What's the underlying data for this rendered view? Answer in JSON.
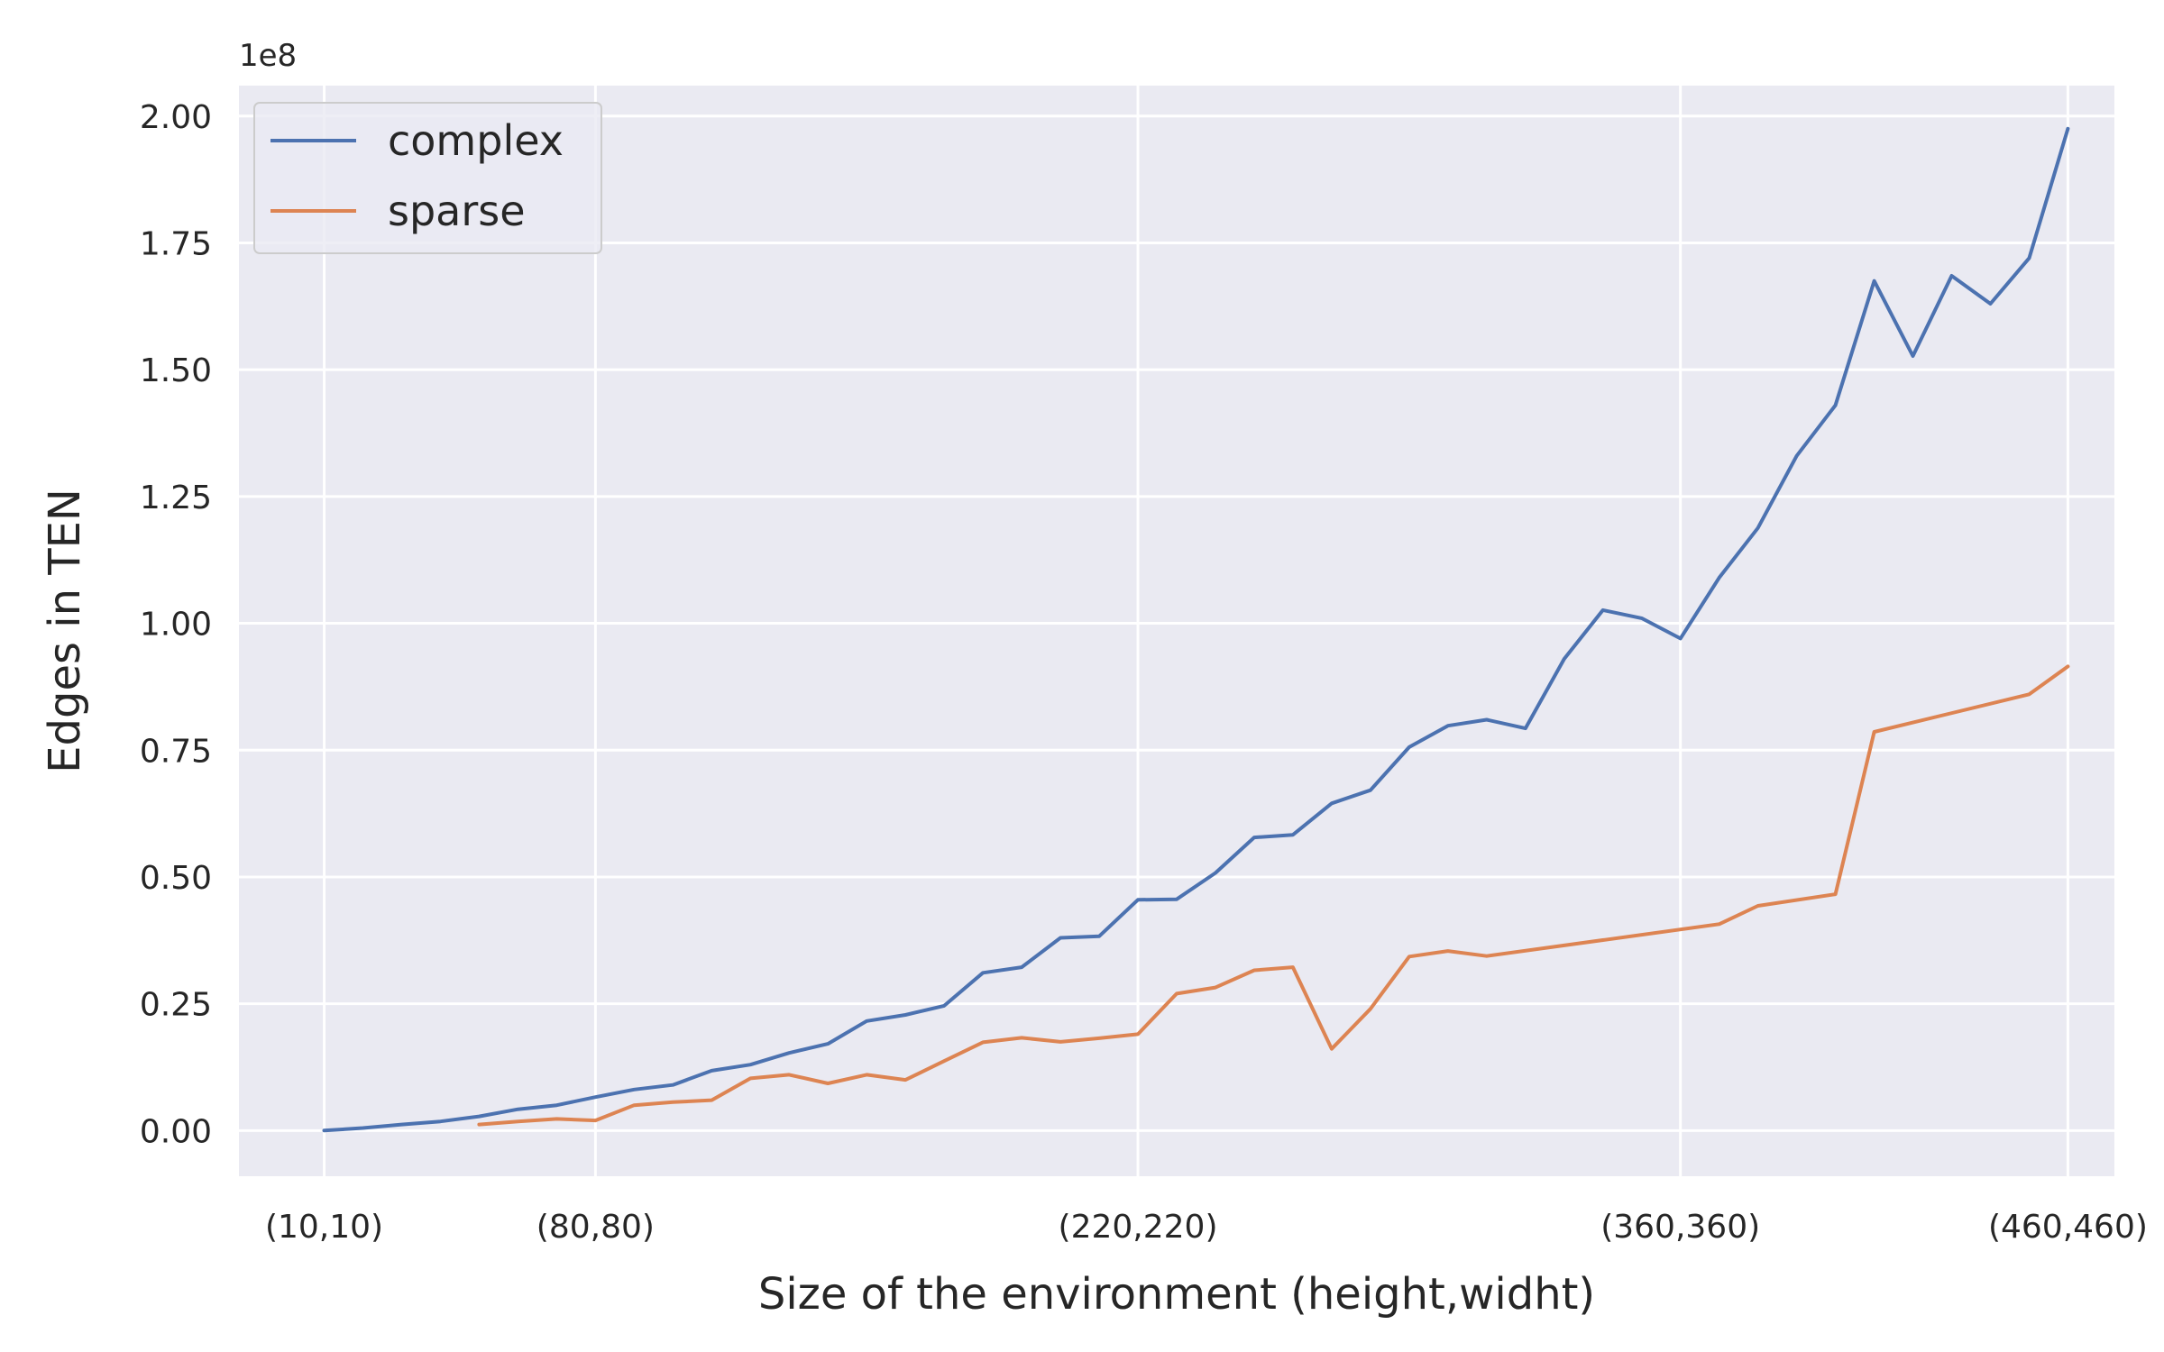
{
  "chart_data": {
    "type": "line",
    "title": "",
    "xlabel": "Size of the environment (height,widht)",
    "ylabel": "Edges in TEN",
    "y_offset_label": "1e8",
    "xlim": [
      -12,
      472
    ],
    "ylim": [
      -0.09,
      2.06
    ],
    "y_ticks": [
      0.0,
      0.25,
      0.5,
      0.75,
      1.0,
      1.25,
      1.5,
      1.75,
      2.0
    ],
    "y_tick_labels": [
      "0.00",
      "0.25",
      "0.50",
      "0.75",
      "1.00",
      "1.25",
      "1.50",
      "1.75",
      "2.00"
    ],
    "x_ticks": [
      10,
      80,
      220,
      360,
      460
    ],
    "x_tick_labels": [
      "(10,10)",
      "(80,80)",
      "(220,220)",
      "(360,360)",
      "(460,460)"
    ],
    "grid": true,
    "legend_position": "top-left",
    "series": [
      {
        "name": "complex",
        "color": "#4c72b0",
        "x": [
          10,
          20,
          30,
          40,
          50,
          60,
          70,
          80,
          90,
          100,
          110,
          120,
          130,
          140,
          150,
          160,
          170,
          180,
          190,
          200,
          210,
          220,
          230,
          240,
          250,
          260,
          270,
          280,
          290,
          300,
          310,
          320,
          330,
          340,
          350,
          360,
          370,
          380,
          390,
          400,
          410,
          420,
          430,
          440,
          450,
          460
        ],
        "y": [
          0.0,
          0.005,
          0.012,
          0.018,
          0.028,
          0.042,
          0.05,
          0.066,
          0.081,
          0.09,
          0.118,
          0.13,
          0.153,
          0.171,
          0.216,
          0.228,
          0.246,
          0.311,
          0.322,
          0.38,
          0.383,
          0.455,
          0.456,
          0.508,
          0.578,
          0.583,
          0.645,
          0.671,
          0.756,
          0.798,
          0.81,
          0.793,
          0.93,
          1.026,
          1.01,
          0.97,
          1.09,
          1.188,
          1.33,
          1.43,
          1.675,
          1.527,
          1.685,
          1.63,
          1.72,
          1.975
        ]
      },
      {
        "name": "sparse",
        "color": "#dd8452",
        "x": [
          50,
          60,
          70,
          80,
          90,
          100,
          110,
          120,
          130,
          140,
          150,
          160,
          170,
          180,
          190,
          200,
          210,
          220,
          230,
          240,
          250,
          260,
          270,
          280,
          290,
          300,
          310,
          370,
          380,
          400,
          410,
          450,
          460
        ],
        "y": [
          0.012,
          0.018,
          0.023,
          0.02,
          0.05,
          0.056,
          0.06,
          0.103,
          0.11,
          0.093,
          0.11,
          0.1,
          0.137,
          0.174,
          0.183,
          0.175,
          0.182,
          0.19,
          0.27,
          0.282,
          0.316,
          0.322,
          0.161,
          0.24,
          0.343,
          0.354,
          0.344,
          0.407,
          0.443,
          0.466,
          0.786,
          0.86,
          0.915
        ]
      }
    ]
  }
}
